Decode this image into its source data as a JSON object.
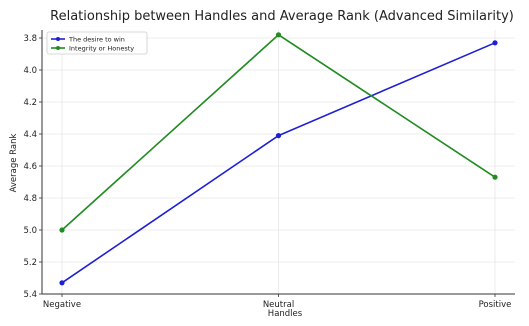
{
  "chart_data": {
    "type": "line",
    "title": "Relationship between Handles and Average Rank (Advanced Similarity)",
    "xlabel": "Handles",
    "ylabel": "Average Rank",
    "categories": [
      "Negative",
      "Neutral",
      "Positive"
    ],
    "ylim": [
      5.4,
      3.75
    ],
    "y_inverted": true,
    "y_ticks": [
      "3.8",
      "4.0",
      "4.2",
      "4.4",
      "4.6",
      "4.8",
      "5.0",
      "5.2",
      "5.4"
    ],
    "grid": true,
    "legend_position": "top-left",
    "series": [
      {
        "name": "The desire to win",
        "color": "#1f1fd6",
        "values": [
          5.33,
          4.41,
          3.83
        ]
      },
      {
        "name": "Integrity or Honesty",
        "color": "#228b22",
        "values": [
          5.0,
          3.78,
          4.67
        ]
      }
    ]
  }
}
